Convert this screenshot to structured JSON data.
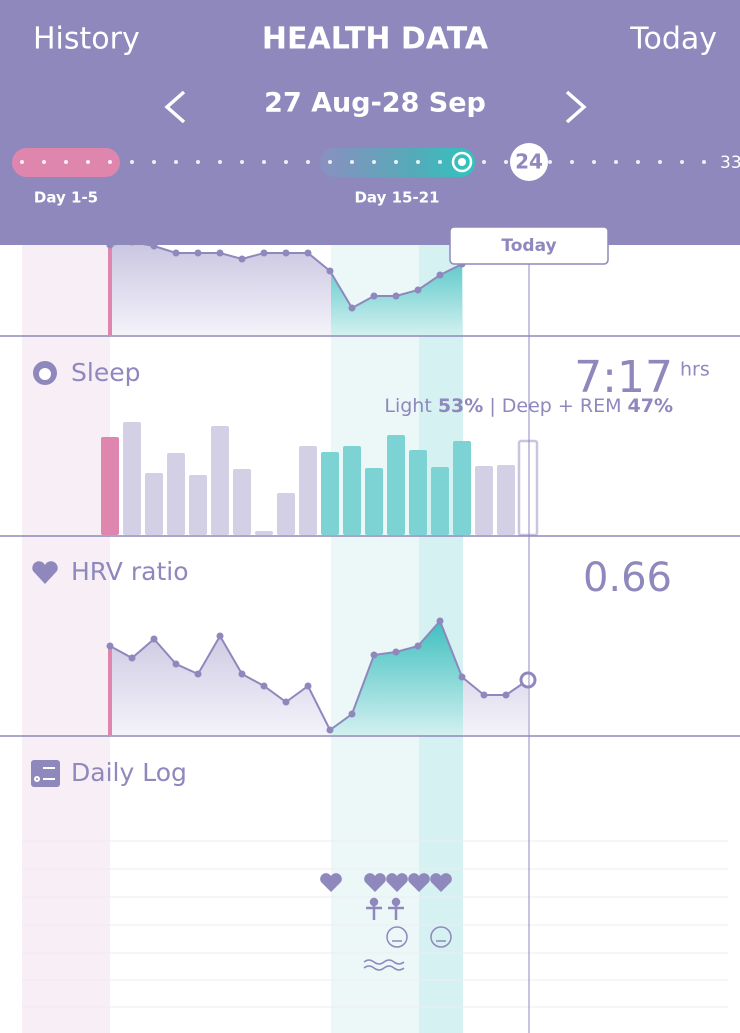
{
  "header": {
    "left": "History",
    "title": "HEALTH DATA",
    "right": "Today",
    "range": "27 Aug-28 Sep"
  },
  "timeline": {
    "phases": [
      "Day 1-5",
      "Day 15-21"
    ],
    "current_day": "24",
    "end_day": "33"
  },
  "today_label": "Today",
  "sleep": {
    "title": "Sleep",
    "value": "7:17",
    "unit": "hrs",
    "light_label": "Light",
    "light": "53%",
    "deep_label": "| Deep + REM",
    "deep": "47%"
  },
  "hrv": {
    "title": "HRV ratio",
    "value": "0.66"
  },
  "daily_log": {
    "title": "Daily Log"
  },
  "chart_data": [
    {
      "type": "area",
      "color": "#8e88bd",
      "ylim": [
        0,
        115
      ],
      "values": [
        90,
        93,
        89,
        82,
        82,
        82,
        76,
        82,
        82,
        82,
        64,
        27,
        39,
        39,
        45,
        60,
        71
      ]
    },
    {
      "type": "bar",
      "ylim": [
        0,
        115
      ],
      "values": [
        98,
        113,
        62,
        82,
        60,
        109,
        66,
        4,
        42,
        89,
        83,
        89,
        67,
        100,
        85,
        68,
        94,
        69,
        70,
        94
      ],
      "colors": [
        "#de86ad",
        "#d3cfe4",
        "#d3cfe4",
        "#d3cfe4",
        "#d3cfe4",
        "#d3cfe4",
        "#d3cfe4",
        "#d3cfe4",
        "#d3cfe4",
        "#d3cfe4",
        "#7dd3d3",
        "#7dd3d3",
        "#7dd3d3",
        "#7dd3d3",
        "#7dd3d3",
        "#7dd3d3",
        "#7dd3d3",
        "#d3cfe4",
        "#d3cfe4",
        "#ffffff"
      ]
    },
    {
      "type": "area",
      "color": "#8e88bd",
      "ylim": [
        0,
        115
      ],
      "values": [
        89,
        77,
        96,
        71,
        61,
        99,
        61,
        49,
        33,
        49,
        5,
        21,
        80,
        83,
        89,
        114,
        58,
        40,
        40,
        55
      ]
    }
  ]
}
